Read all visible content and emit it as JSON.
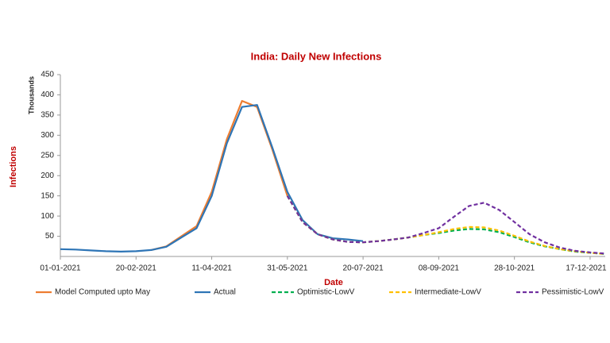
{
  "chart_data": {
    "type": "line",
    "title": "India: Daily New Infections",
    "y_label": "Infections",
    "y_unit_label": "Thousands",
    "x_label": "Date",
    "x": [
      "01-01-2021",
      "11-01-2021",
      "21-01-2021",
      "31-01-2021",
      "10-02-2021",
      "20-02-2021",
      "02-03-2021",
      "12-03-2021",
      "22-03-2021",
      "01-04-2021",
      "11-04-2021",
      "21-04-2021",
      "01-05-2021",
      "11-05-2021",
      "21-05-2021",
      "31-05-2021",
      "10-06-2021",
      "20-06-2021",
      "30-06-2021",
      "10-07-2021",
      "20-07-2021",
      "30-07-2021",
      "09-08-2021",
      "19-08-2021",
      "29-08-2021",
      "08-09-2021",
      "18-09-2021",
      "28-09-2021",
      "08-10-2021",
      "18-10-2021",
      "28-10-2021",
      "07-11-2021",
      "17-11-2021",
      "27-11-2021",
      "07-12-2021",
      "17-12-2021",
      "27-12-2021"
    ],
    "xlim": [
      "01-01-2021",
      "27-12-2021"
    ],
    "xticks": [
      "01-01-2021",
      "20-02-2021",
      "11-04-2021",
      "31-05-2021",
      "20-07-2021",
      "08-09-2021",
      "28-10-2021",
      "17-12-2021"
    ],
    "ylim": [
      0,
      450
    ],
    "yticks": [
      50,
      100,
      150,
      200,
      250,
      300,
      350,
      400,
      450
    ],
    "series": [
      {
        "name": "Model Computed upto May",
        "color": "#ed7d31",
        "dashed": false,
        "values": [
          null,
          null,
          null,
          null,
          null,
          null,
          16,
          25,
          50,
          75,
          160,
          290,
          385,
          370,
          265,
          150,
          null,
          null,
          null,
          null,
          null,
          null,
          null,
          null,
          null,
          null,
          null,
          null,
          null,
          null,
          null,
          null,
          null,
          null,
          null,
          null,
          null
        ]
      },
      {
        "name": "Actual",
        "color": "#2e75b6",
        "dashed": false,
        "values": [
          18,
          17,
          15,
          13,
          12,
          13,
          16,
          24,
          47,
          70,
          150,
          280,
          370,
          375,
          270,
          160,
          90,
          55,
          45,
          42,
          38,
          null,
          null,
          null,
          null,
          null,
          null,
          null,
          null,
          null,
          null,
          null,
          null,
          null,
          null,
          null,
          null
        ]
      },
      {
        "name": "Optimistic-LowV",
        "color": "#00b050",
        "dashed": true,
        "values": [
          null,
          null,
          null,
          null,
          null,
          null,
          null,
          null,
          null,
          null,
          null,
          null,
          null,
          null,
          null,
          150,
          85,
          55,
          42,
          36,
          35,
          38,
          42,
          47,
          53,
          58,
          64,
          68,
          67,
          60,
          48,
          35,
          25,
          18,
          12,
          9,
          6
        ]
      },
      {
        "name": "Intermediate-LowV",
        "color": "#ffc000",
        "dashed": true,
        "values": [
          null,
          null,
          null,
          null,
          null,
          null,
          null,
          null,
          null,
          null,
          null,
          null,
          null,
          null,
          null,
          150,
          85,
          55,
          42,
          36,
          35,
          38,
          42,
          47,
          53,
          60,
          68,
          73,
          72,
          64,
          51,
          37,
          26,
          18,
          13,
          9,
          6
        ]
      },
      {
        "name": "Pessimistic-LowV",
        "color": "#7030a0",
        "dashed": true,
        "values": [
          null,
          null,
          null,
          null,
          null,
          null,
          null,
          null,
          null,
          null,
          null,
          null,
          null,
          null,
          null,
          150,
          85,
          55,
          42,
          36,
          35,
          38,
          42,
          47,
          58,
          70,
          98,
          125,
          133,
          115,
          85,
          55,
          35,
          22,
          14,
          10,
          7
        ]
      }
    ]
  }
}
